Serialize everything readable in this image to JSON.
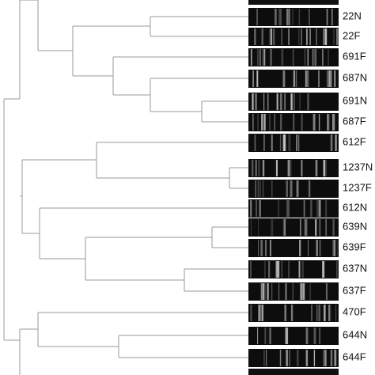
{
  "labels": [
    "22N",
    "22F",
    "691F",
    "687N",
    "691N",
    "687F",
    "612F",
    "1237N",
    "1237F",
    "612N",
    "639N",
    "639F",
    "637N",
    "637F",
    "470F",
    "644N",
    "644F"
  ]
}
